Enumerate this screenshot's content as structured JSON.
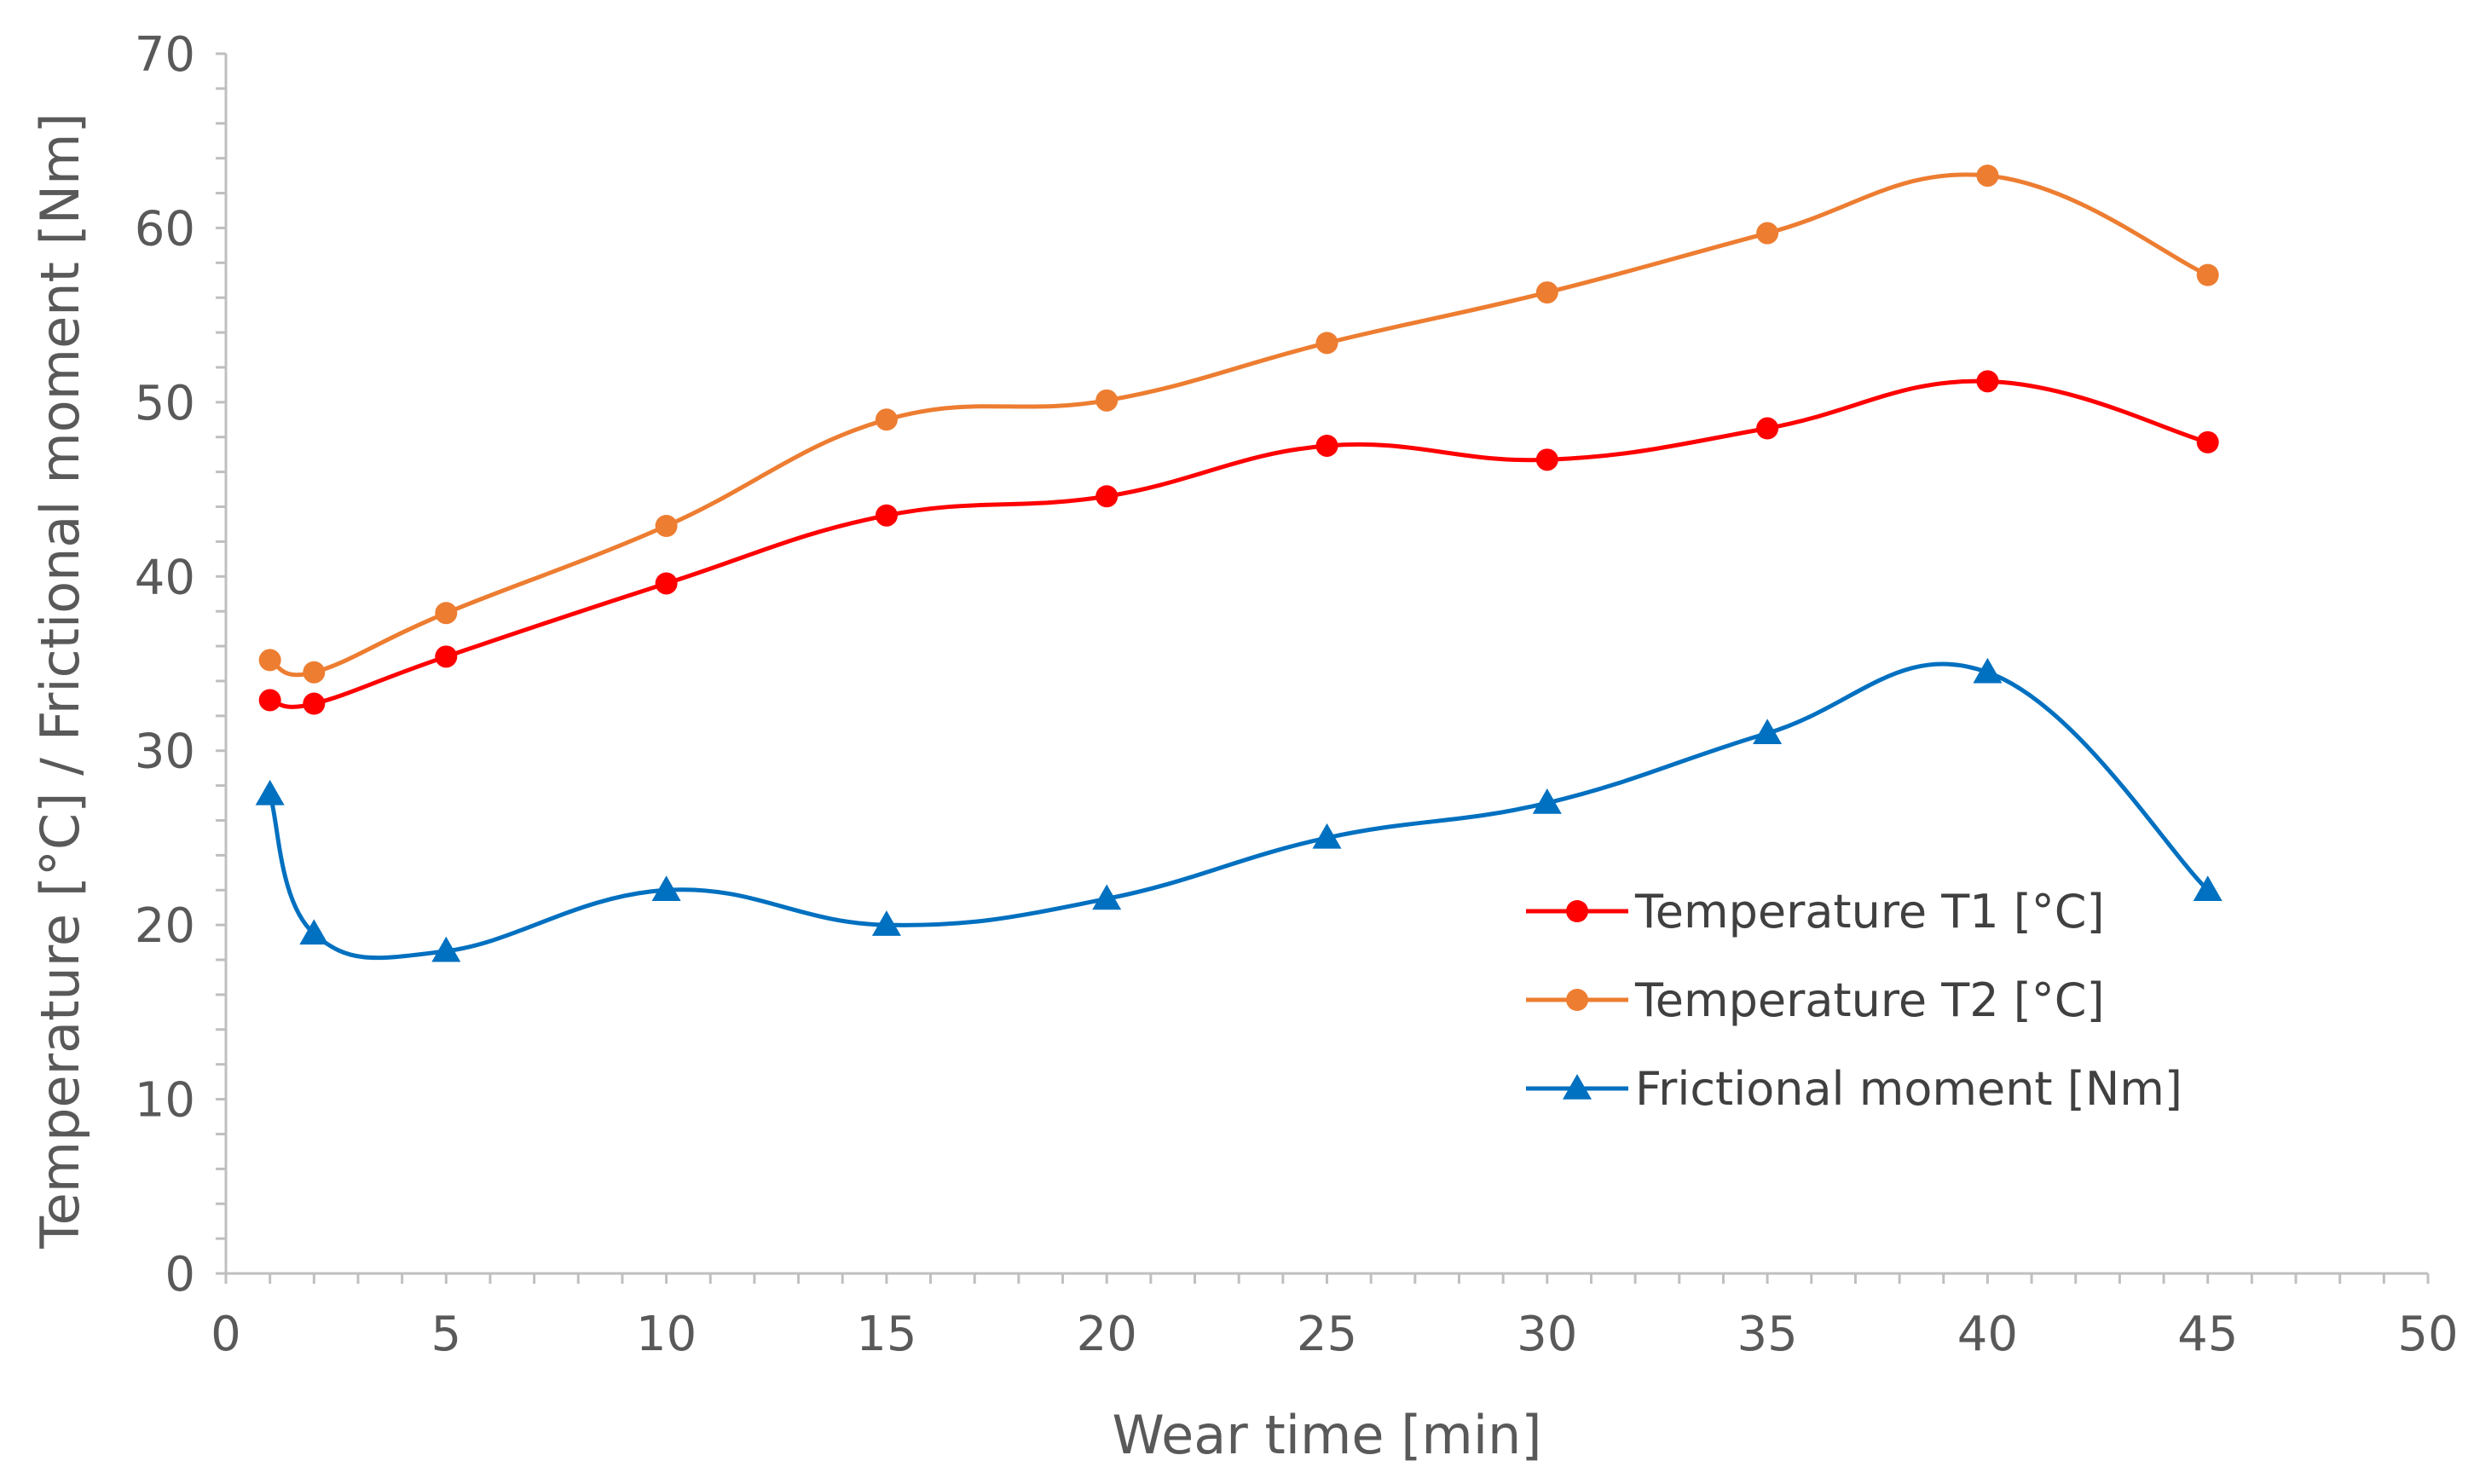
{
  "chart_data": {
    "type": "line",
    "title": "",
    "xlabel": "Wear time [min]",
    "ylabel": "Temperature [°C] / Frictional moment [Nm]",
    "xlim": [
      0,
      50
    ],
    "ylim": [
      0,
      70
    ],
    "x_ticks": [
      "0",
      "5",
      "10",
      "15",
      "20",
      "25",
      "30",
      "35",
      "40",
      "45",
      "50"
    ],
    "y_ticks": [
      "0",
      "10",
      "20",
      "30",
      "40",
      "50",
      "60",
      "70"
    ],
    "x_tick_values": [
      0,
      5,
      10,
      15,
      20,
      25,
      30,
      35,
      40,
      45,
      50
    ],
    "y_tick_values": [
      0,
      10,
      20,
      30,
      40,
      50,
      60,
      70
    ],
    "grid": false,
    "legend_position": "right",
    "x": [
      1,
      2,
      5,
      10,
      15,
      20,
      25,
      30,
      35,
      40,
      45
    ],
    "series": [
      {
        "name": "Temperature T1 [°C]",
        "color": "#ff0000",
        "marker": "circle",
        "values": [
          32.9,
          32.7,
          35.4,
          39.6,
          43.5,
          44.6,
          47.5,
          46.7,
          48.5,
          51.2,
          47.7
        ]
      },
      {
        "name": "Temperature T2 [°C]",
        "color": "#ed7d31",
        "marker": "circle",
        "values": [
          35.2,
          34.5,
          37.9,
          42.9,
          49.0,
          50.1,
          53.4,
          56.3,
          59.7,
          63.0,
          57.3
        ]
      },
      {
        "name": "Frictional moment [Nm]",
        "color": "#0070c0",
        "marker": "triangle",
        "values": [
          27.5,
          19.5,
          18.5,
          22.0,
          20.0,
          21.5,
          25.0,
          27.0,
          31.0,
          34.5,
          22.0
        ]
      }
    ]
  }
}
